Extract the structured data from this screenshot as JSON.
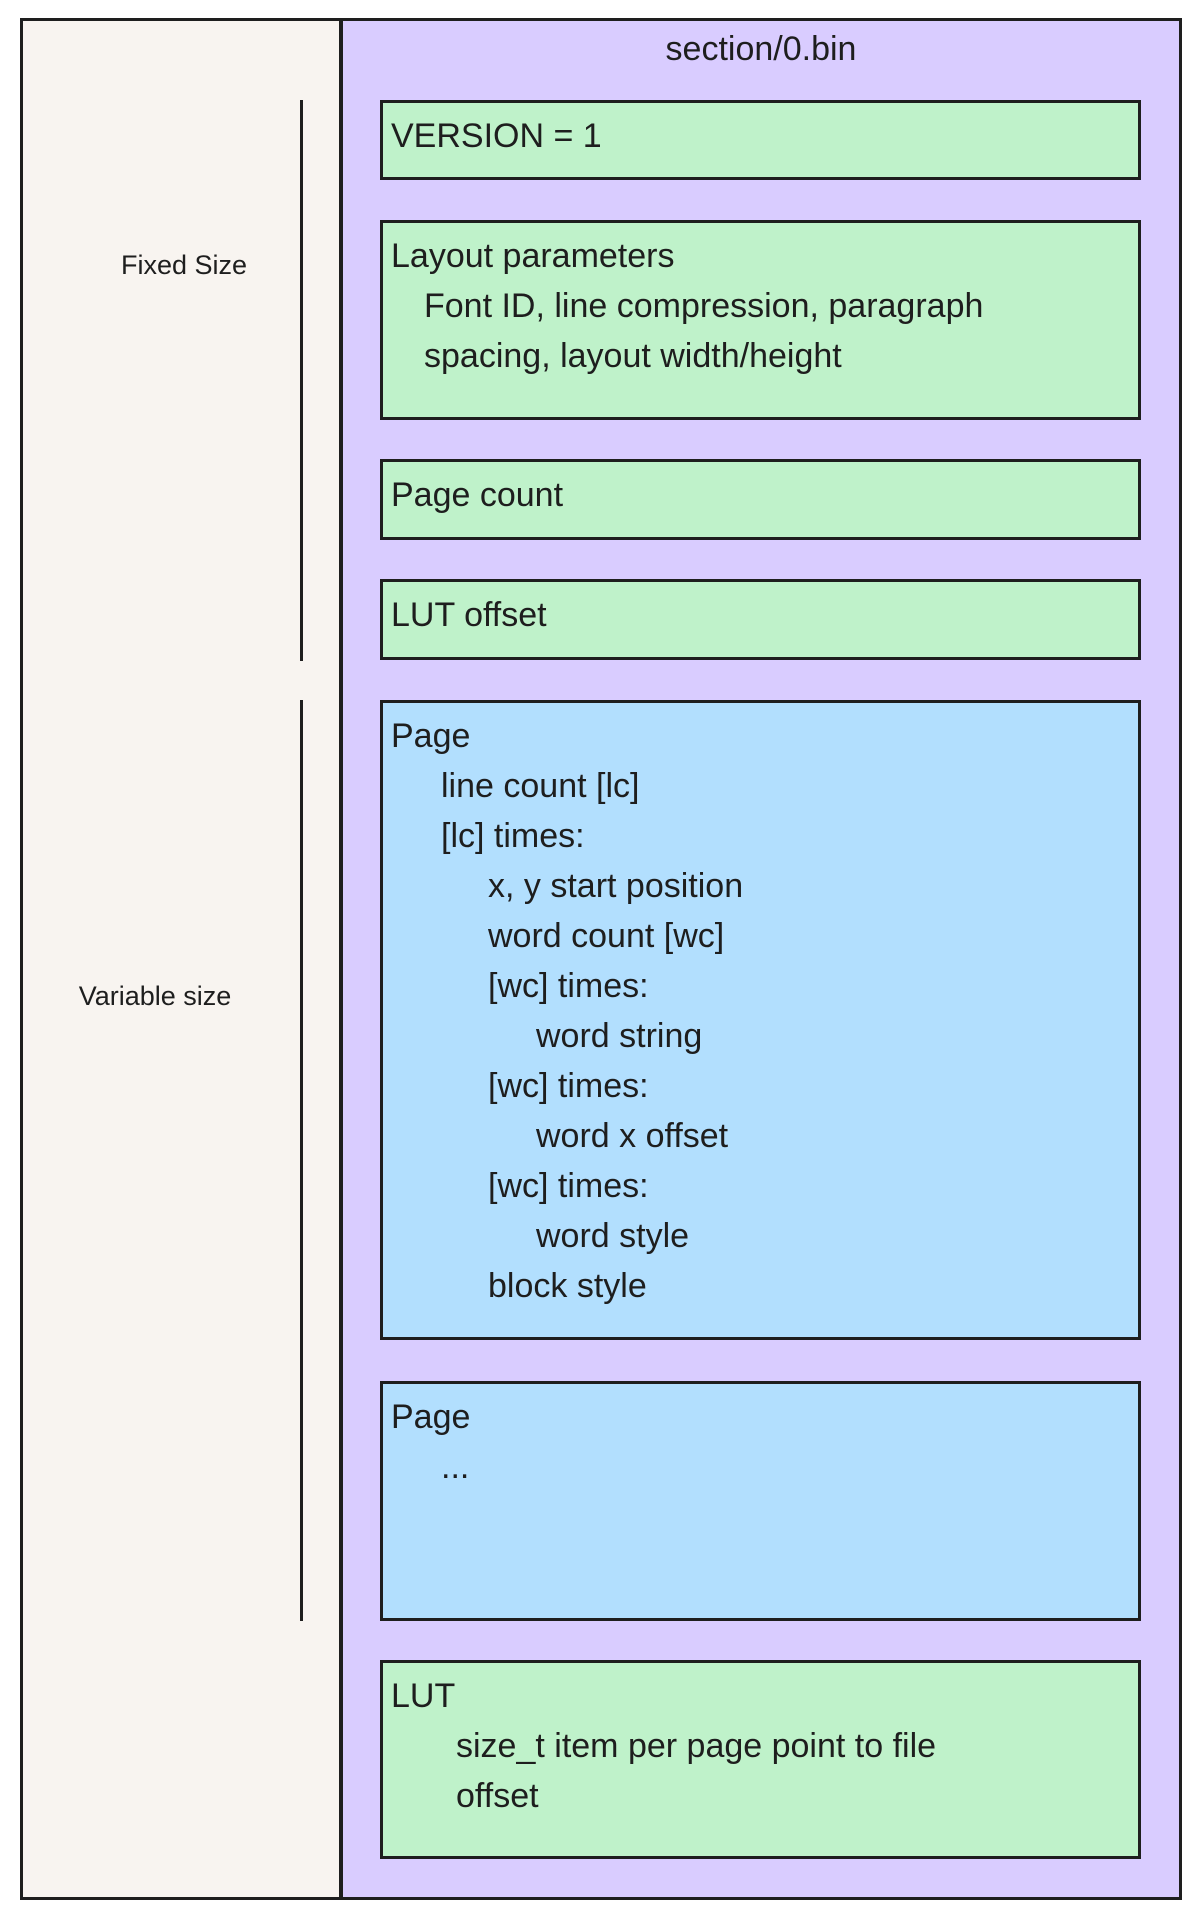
{
  "title": "section/0.bin",
  "labels": {
    "fixed": "Fixed Size",
    "variable": "Variable size"
  },
  "colors": {
    "fixed_block": "#bff2ca",
    "page_block": "#b2dffe",
    "file_bg": "#d9ccff",
    "side_bg": "#f8f4f0"
  },
  "blocks": {
    "version": {
      "lines": [
        "VERSION = 1"
      ]
    },
    "layout": {
      "lines": [
        "Layout parameters",
        "Font ID, line compression, paragraph",
        "spacing, layout width/height"
      ]
    },
    "page_count": {
      "lines": [
        "Page count"
      ]
    },
    "lut_offset": {
      "lines": [
        "LUT offset"
      ]
    },
    "page": {
      "lines": [
        "Page",
        "line count [lc]",
        "[lc] times:",
        "x, y start position",
        "word count [wc]",
        "[wc] times:",
        "word string",
        "[wc] times:",
        "word x offset",
        "[wc] times:",
        "word style",
        "block style"
      ]
    },
    "page2": {
      "lines": [
        "Page",
        "..."
      ]
    },
    "lut": {
      "lines": [
        "LUT",
        "size_t item per page point to file",
        "offset"
      ]
    }
  }
}
